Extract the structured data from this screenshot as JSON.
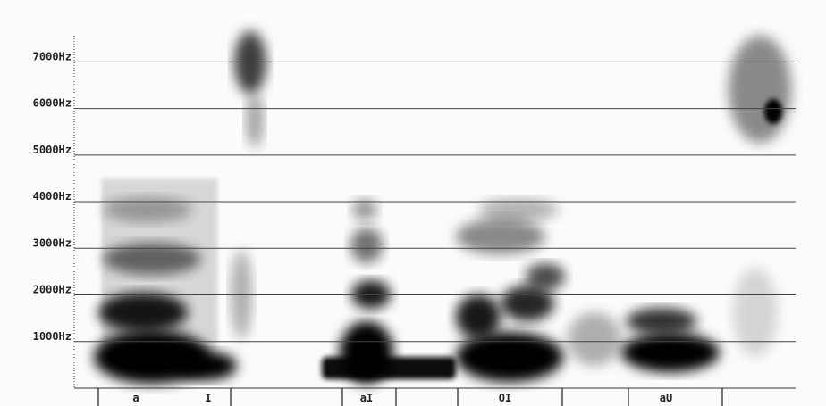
{
  "chart_data": {
    "type": "spectrogram",
    "ylim": [
      0,
      7600
    ],
    "yticks": [
      {
        "value": 1000,
        "label": "1000Hz"
      },
      {
        "value": 2000,
        "label": "2000Hz"
      },
      {
        "value": 3000,
        "label": "3000Hz"
      },
      {
        "value": 4000,
        "label": "4000Hz"
      },
      {
        "value": 5000,
        "label": "5000Hz"
      },
      {
        "value": 6000,
        "label": "6000Hz"
      },
      {
        "value": 7000,
        "label": "7000Hz"
      }
    ],
    "grid": true,
    "categories": [
      "a",
      "I",
      "aI",
      "OI",
      "aU"
    ]
  }
}
